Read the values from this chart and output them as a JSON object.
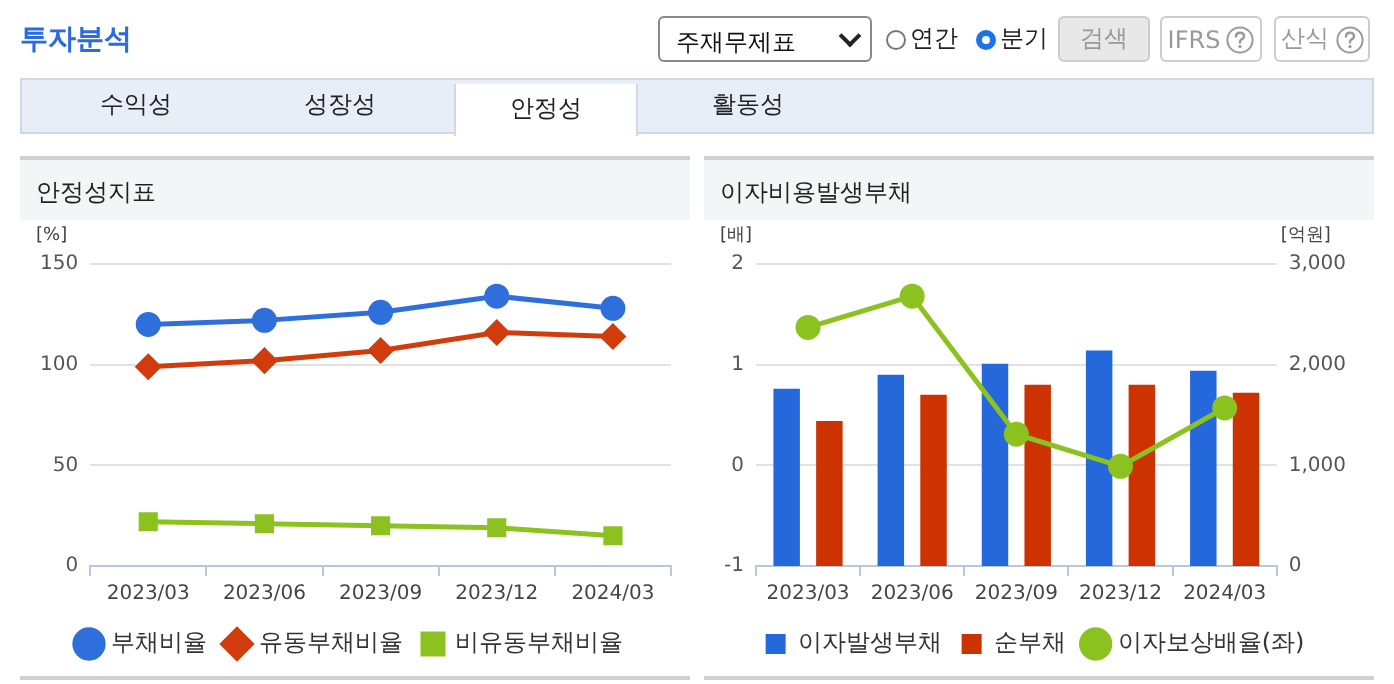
{
  "chart_data": [
    {
      "type": "other",
      "title": "투자분석",
      "annotations": [
        "주재무제표",
        "연간",
        "분기",
        "검색",
        "IFRS",
        "산식",
        "수익성",
        "성장성",
        "안정성",
        "활동성"
      ]
    },
    {
      "type": "line",
      "title": "안정성지표",
      "ylabel": "[%]",
      "categories": [
        "2023/03",
        "2023/06",
        "2023/09",
        "2023/12",
        "2024/03"
      ],
      "series": [
        {
          "name": "부채비율",
          "color": "#2f6fdc",
          "marker": "circle",
          "values": [
            120,
            122,
            126,
            134,
            128
          ]
        },
        {
          "name": "유동부채비율",
          "color": "#d23c0c",
          "marker": "diamond",
          "values": [
            99,
            102,
            107,
            116,
            114
          ]
        },
        {
          "name": "비유동부채비율",
          "color": "#8cc21f",
          "marker": "square",
          "values": [
            22,
            21,
            20,
            19,
            15
          ]
        }
      ],
      "ylim": [
        0,
        150
      ],
      "yticks": [
        0,
        50,
        100,
        150
      ],
      "grid": "y",
      "legend": "bottom"
    },
    {
      "type": "bar",
      "title": "이자비용발생부채",
      "ylabel": "[배]",
      "y2label": "[억원]",
      "categories": [
        "2023/03",
        "2023/06",
        "2023/09",
        "2023/12",
        "2024/03"
      ],
      "series": [
        {
          "name": "이자발생부채",
          "color": "#2468dc",
          "axis": "y2",
          "values": [
            1760,
            1900,
            2010,
            2140,
            1940
          ]
        },
        {
          "name": "순부채",
          "color": "#cc3300",
          "axis": "y2",
          "values": [
            1440,
            1700,
            1800,
            1800,
            1720
          ]
        },
        {
          "name": "이자보상배율(좌)",
          "type": "line",
          "color": "#8cc21f",
          "marker": "circle",
          "axis": "y",
          "values": [
            1.37,
            1.68,
            0.31,
            -0.01,
            0.57
          ]
        }
      ],
      "ylim": [
        -1,
        2
      ],
      "yticks": [
        -1,
        0,
        1,
        2
      ],
      "y2lim": [
        0,
        3000
      ],
      "y2ticks": [
        0,
        {
          "value": 1000,
          "label": "1,000"
        },
        {
          "value": 2000,
          "label": "2,000"
        },
        {
          "value": 3000,
          "label": "3,000"
        }
      ],
      "grid": "y",
      "legend": "bottom"
    }
  ]
}
